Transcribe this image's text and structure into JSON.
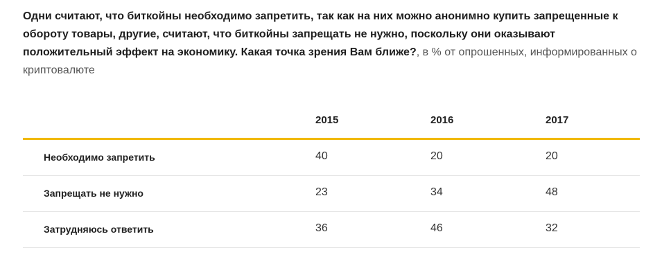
{
  "question": {
    "text": "Одни считают, что биткойны необходимо запретить, так как на них можно анонимно купить запрещенные к обороту товары, другие, считают, что биткойны запрещать не нужно, поскольку они оказывают положительный эффект на экономику. Какая точка зрения Вам ближе?",
    "note": ", в % от опрошенных, информированных о криптовалюте"
  },
  "table": {
    "columns": [
      "2015",
      "2016",
      "2017"
    ],
    "rows": [
      {
        "label": "Необходимо запретить",
        "values": [
          "40",
          "20",
          "20"
        ]
      },
      {
        "label": "Запрещать не нужно",
        "values": [
          "23",
          "34",
          "48"
        ]
      },
      {
        "label": "Затрудняюсь ответить",
        "values": [
          "36",
          "46",
          "32"
        ]
      }
    ]
  },
  "colors": {
    "accent_rule": "#f0b800",
    "row_divider": "#e6e6e6"
  }
}
